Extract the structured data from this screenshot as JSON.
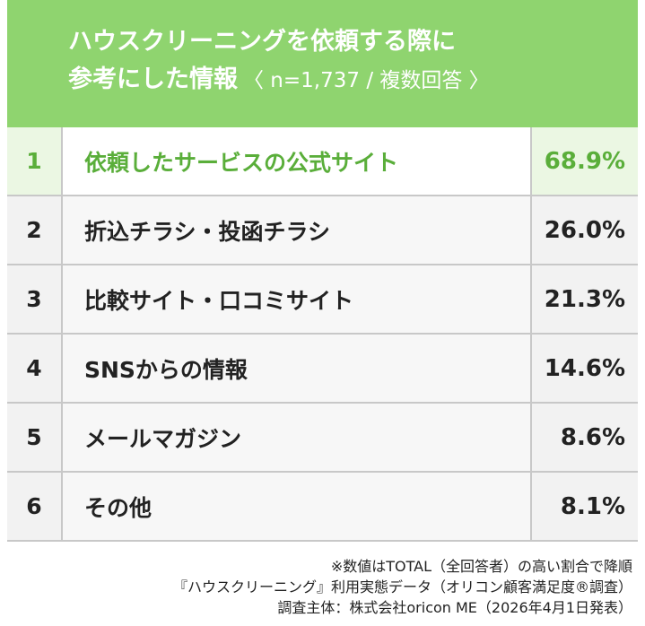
{
  "colors": {
    "header_bg": "#8fd46f",
    "highlight": "#5aae3a",
    "border": "#c8c8c8"
  },
  "header": {
    "title_line1": "ハウスクリーニングを依頼する際に",
    "title_line2": "参考にした情報",
    "note": "〈 n=1,737 / 複数回答 〉"
  },
  "chart_data": {
    "type": "table",
    "title": "ハウスクリーニングを依頼する際に参考にした情報",
    "subtitle": "〈 n=1,737 / 複数回答 〉",
    "columns": [
      "rank",
      "item",
      "percent"
    ],
    "rows": [
      {
        "rank": "1",
        "item": "依頼したサービスの公式サイト",
        "value": "68.9%"
      },
      {
        "rank": "2",
        "item": "折込チラシ・投函チラシ",
        "value": "26.0%"
      },
      {
        "rank": "3",
        "item": "比較サイト・口コミサイト",
        "value": "21.3%"
      },
      {
        "rank": "4",
        "item": "SNSからの情報",
        "value": "14.6%"
      },
      {
        "rank": "5",
        "item": "メールマガジン",
        "value": "8.6%"
      },
      {
        "rank": "6",
        "item": "その他",
        "value": "8.1%"
      }
    ],
    "values": [
      68.9,
      26.0,
      21.3,
      14.6,
      8.6,
      8.1
    ]
  },
  "footer": {
    "line1": "※数値はTOTAL（全回答者）の高い割合で降順",
    "line2": "『ハウスクリーニング』利用実態データ（オリコン顧客満足度®調査）",
    "line3": "調査主体：株式会社oricon ME（2026年4月1日発表）"
  }
}
